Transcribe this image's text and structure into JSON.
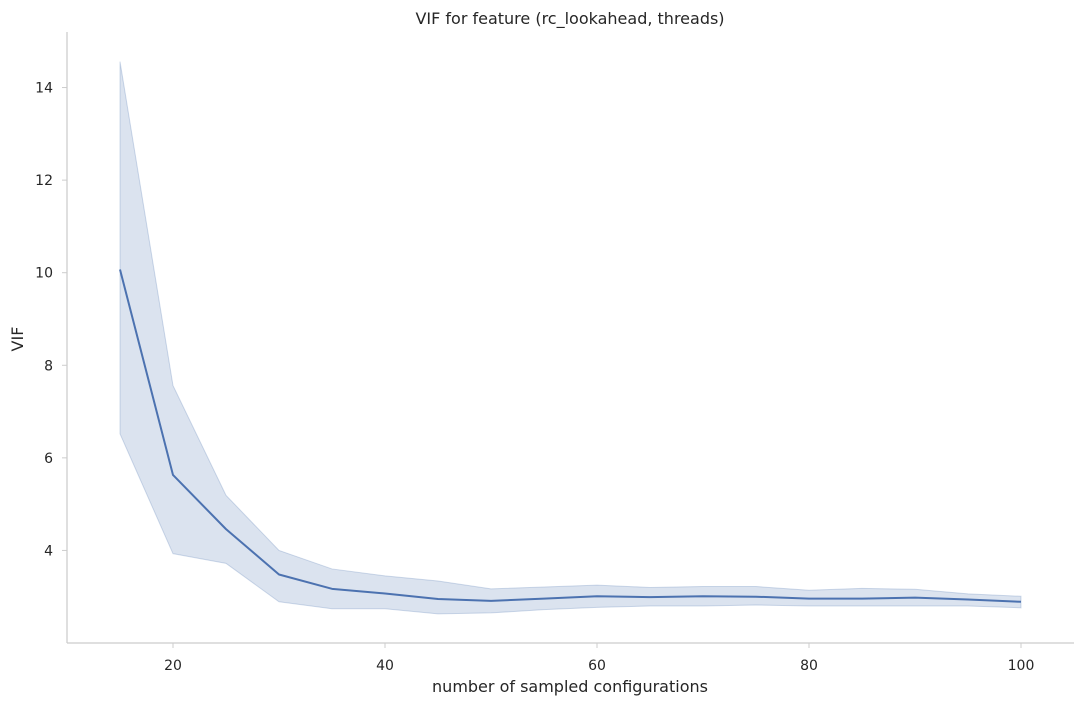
{
  "chart_data": {
    "type": "line",
    "title": "VIF for feature (rc_lookahead, threads)",
    "xlabel": "number of sampled configurations",
    "ylabel": "VIF",
    "xlim": [
      10,
      105
    ],
    "ylim": [
      2.0,
      15.2
    ],
    "xticks": [
      20,
      40,
      60,
      80,
      100
    ],
    "yticks": [
      4,
      6,
      8,
      10,
      12,
      14
    ],
    "grid": false,
    "legend": "none",
    "colors": {
      "line": "#4c72b0",
      "band": "#4c72b0"
    },
    "series": [
      {
        "x": [
          15,
          20,
          25,
          30,
          35,
          40,
          45,
          50,
          55,
          60,
          65,
          70,
          75,
          80,
          85,
          90,
          95,
          100
        ],
        "y": [
          10.07,
          5.63,
          4.46,
          3.48,
          3.17,
          3.07,
          2.95,
          2.91,
          2.96,
          3.01,
          2.99,
          3.01,
          3.0,
          2.96,
          2.96,
          2.98,
          2.94,
          2.89
        ],
        "ci_lower": [
          6.52,
          3.93,
          3.72,
          2.89,
          2.74,
          2.74,
          2.63,
          2.65,
          2.72,
          2.77,
          2.8,
          2.8,
          2.82,
          2.8,
          2.8,
          2.8,
          2.8,
          2.76
        ],
        "ci_upper": [
          14.56,
          7.56,
          5.19,
          4.0,
          3.6,
          3.45,
          3.34,
          3.17,
          3.21,
          3.25,
          3.2,
          3.22,
          3.22,
          3.14,
          3.18,
          3.16,
          3.06,
          3.01
        ]
      }
    ]
  }
}
